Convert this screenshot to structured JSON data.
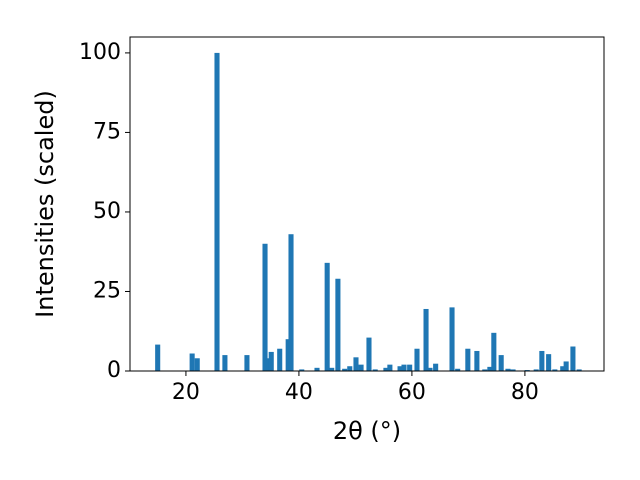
{
  "chart_data": {
    "type": "bar",
    "xlabel": "2θ (°)",
    "ylabel": "Intensities (scaled)",
    "x": [
      15.0,
      21.1,
      22.0,
      25.5,
      26.9,
      30.8,
      34.0,
      34.7,
      35.1,
      36.6,
      38.1,
      38.6,
      40.5,
      43.2,
      45.0,
      45.8,
      46.9,
      48.1,
      49.0,
      50.1,
      51.0,
      52.4,
      53.5,
      55.4,
      56.1,
      57.9,
      58.6,
      59.6,
      60.9,
      62.5,
      63.2,
      64.2,
      67.1,
      68.1,
      69.9,
      71.5,
      72.9,
      73.8,
      74.5,
      75.8,
      77.0,
      77.9,
      80.4,
      82.0,
      83.0,
      84.2,
      85.3,
      86.7,
      87.3,
      88.5,
      89.6
    ],
    "values": [
      8.3,
      5.5,
      4,
      100,
      5,
      5,
      40,
      4,
      6,
      7,
      10,
      43,
      0.5,
      1,
      34,
      1,
      29,
      0.7,
      1.5,
      4.3,
      2,
      10.5,
      0.5,
      1,
      2,
      1.5,
      2,
      2,
      7,
      19.5,
      1,
      2.3,
      20,
      0.7,
      7,
      6.3,
      0.5,
      1.3,
      12,
      5,
      0.7,
      0.5,
      0.3,
      0.5,
      6.3,
      5.3,
      0.5,
      1.5,
      3,
      7.7,
      0.5
    ],
    "color": "#1f77b4",
    "xlim": [
      10.1,
      94.0
    ],
    "xticks": [
      20,
      40,
      60,
      80
    ],
    "ylim": [
      0,
      105
    ],
    "yticks": [
      0,
      25,
      50,
      75,
      100
    ]
  }
}
